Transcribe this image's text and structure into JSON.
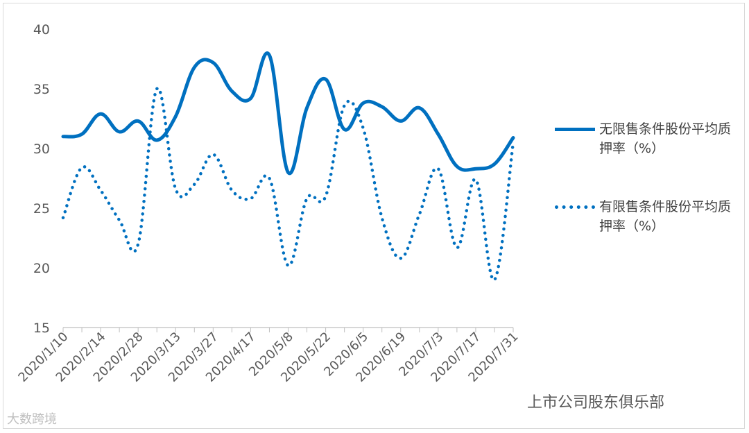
{
  "chart_data": {
    "type": "line",
    "ylim": [
      15,
      40
    ],
    "yticks": [
      15,
      20,
      25,
      30,
      35,
      40
    ],
    "xtick_labels": [
      "2020/1/10",
      "2020/2/14",
      "2020/2/28",
      "2020/3/13",
      "2020/3/27",
      "2020/4/17",
      "2020/5/8",
      "2020/5/22",
      "2020/6/5",
      "2020/6/19",
      "2020/7/3",
      "2020/7/17",
      "2020/7/31"
    ],
    "series": [
      {
        "name": "无限售条件股份平均质押率（%）",
        "style": "solid",
        "values": [
          31.0,
          31.2,
          32.9,
          31.4,
          32.3,
          30.7,
          32.7,
          36.8,
          37.2,
          34.8,
          34.2,
          37.8,
          28.0,
          33.4,
          35.8,
          31.6,
          33.8,
          33.5,
          32.3,
          33.4,
          31.2,
          28.5,
          28.3,
          28.7,
          30.9
        ]
      },
      {
        "name": "有限售条件股份平均质押率（%）",
        "style": "dotted",
        "values": [
          24.2,
          28.4,
          26.5,
          24.0,
          22.0,
          35.0,
          26.6,
          27.0,
          29.5,
          26.5,
          25.8,
          27.5,
          20.2,
          25.8,
          26.0,
          33.6,
          31.7,
          24.2,
          20.8,
          24.5,
          28.3,
          21.7,
          27.4,
          19.0,
          30.5
        ]
      }
    ],
    "colors": {
      "line": "#0070C0",
      "axis": "#bfbfbf",
      "tick_text": "#595959"
    }
  },
  "watermark": {
    "bottom_left": "大数跨境",
    "bottom_right": "上市公司股东俱乐部"
  }
}
